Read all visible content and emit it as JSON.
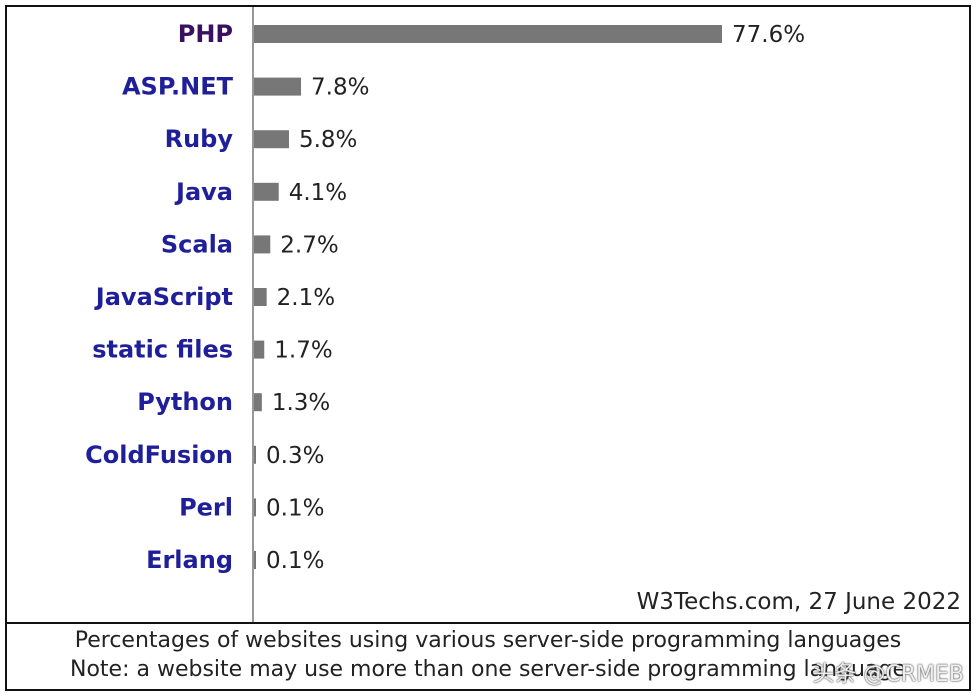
{
  "chart_data": {
    "type": "bar",
    "orientation": "horizontal",
    "categories": [
      "PHP",
      "ASP.NET",
      "Ruby",
      "Java",
      "Scala",
      "JavaScript",
      "static files",
      "Python",
      "ColdFusion",
      "Perl",
      "Erlang"
    ],
    "values": [
      77.6,
      7.8,
      5.8,
      4.1,
      2.7,
      2.1,
      1.7,
      1.3,
      0.3,
      0.1,
      0.1
    ],
    "value_labels": [
      "77.6%",
      "7.8%",
      "5.8%",
      "4.1%",
      "2.7%",
      "2.1%",
      "1.7%",
      "1.3%",
      "0.3%",
      "0.1%",
      "0.1%"
    ],
    "xlim": [
      0,
      100
    ],
    "bar_color": "#777777",
    "label_color": "#1f1f9a",
    "grid": false,
    "legend": "none"
  },
  "source": "W3Techs.com, 27 June 2022",
  "caption": {
    "line1": "Percentages of websites using various server-side programming languages",
    "line2": "Note: a website may use more than one server-side programming language"
  },
  "watermark": "头条 @CRMEB"
}
